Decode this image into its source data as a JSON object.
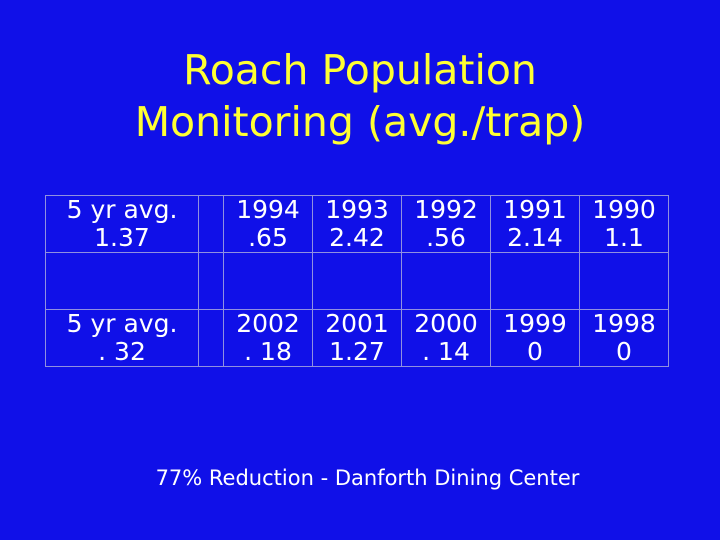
{
  "title": {
    "line1": "Roach Population",
    "line2": "Monitoring (avg./trap)"
  },
  "table": {
    "rows": [
      {
        "avg_label": "5 yr avg.",
        "avg_value": "1.37",
        "years": [
          "1994",
          "1993",
          "1992",
          "1991",
          "1990"
        ],
        "values": [
          ".65",
          "2.42",
          ".56",
          "2.14",
          "1.1"
        ]
      },
      {
        "avg_label": "5 yr avg.",
        "avg_value": ". 32",
        "years": [
          "2002",
          "2001",
          "2000",
          "1999",
          "1998"
        ],
        "values": [
          ". 18",
          "1.27",
          ". 14",
          "0",
          "0"
        ]
      }
    ]
  },
  "footer": "77% Reduction - Danforth Dining Center",
  "colors": {
    "background": "#1010e8",
    "title": "#ffff33",
    "text": "#ffffff"
  }
}
